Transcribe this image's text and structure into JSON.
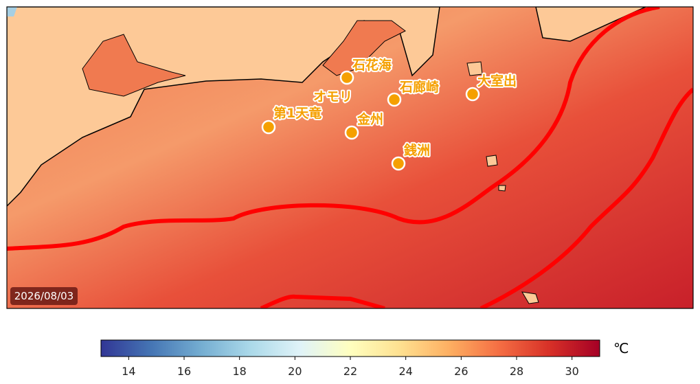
{
  "map": {
    "date": "2026/08/03",
    "stations": [
      {
        "name": "石花海"
      },
      {
        "name": "オモリ"
      },
      {
        "name": "第1天竜"
      },
      {
        "name": "金州"
      },
      {
        "name": "石廊崎"
      },
      {
        "name": "大室出"
      },
      {
        "name": "銭洲"
      }
    ]
  },
  "colorbar": {
    "unit": "℃",
    "range": [
      13,
      31
    ],
    "ticks": [
      14,
      16,
      18,
      20,
      22,
      24,
      26,
      28,
      30
    ]
  }
}
